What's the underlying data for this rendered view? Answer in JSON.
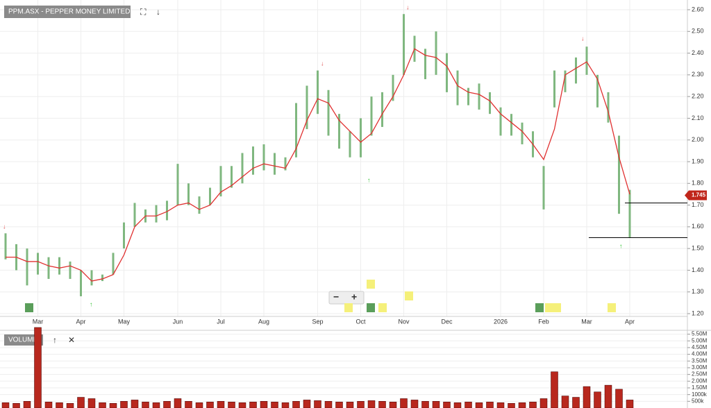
{
  "chart_data": [
    {
      "type": "ohlc",
      "title": "PPM.ASX - PEPPER MONEY LIMITED",
      "categories": [
        null,
        null,
        null,
        "Mar",
        null,
        null,
        null,
        "Apr",
        null,
        null,
        null,
        "May",
        null,
        null,
        null,
        null,
        "Jun",
        null,
        null,
        null,
        "Jul",
        null,
        null,
        null,
        "Aug",
        null,
        null,
        null,
        null,
        "Sep",
        null,
        null,
        null,
        "Oct",
        null,
        null,
        null,
        "Nov",
        null,
        null,
        null,
        "Dec",
        null,
        null,
        null,
        null,
        "2026",
        null,
        null,
        null,
        "Feb",
        null,
        null,
        null,
        "Mar",
        null,
        null,
        null,
        "Apr"
      ],
      "low": [
        1.45,
        1.4,
        1.33,
        1.38,
        1.36,
        1.38,
        1.36,
        1.28,
        1.33,
        1.35,
        1.38,
        1.5,
        1.6,
        1.62,
        1.62,
        1.63,
        1.7,
        1.7,
        1.66,
        1.7,
        1.74,
        1.78,
        1.8,
        1.84,
        1.86,
        1.84,
        1.86,
        1.92,
        2.05,
        2.12,
        2.02,
        1.96,
        1.92,
        1.92,
        2.02,
        2.06,
        2.18,
        2.3,
        2.36,
        2.28,
        2.3,
        2.22,
        2.16,
        2.16,
        2.14,
        2.12,
        2.02,
        2.02,
        1.98,
        1.92,
        1.68,
        2.15,
        2.22,
        2.26,
        2.3,
        2.15,
        2.08,
        1.66,
        1.55
      ],
      "high": [
        1.57,
        1.52,
        1.5,
        1.48,
        1.46,
        1.46,
        1.44,
        1.4,
        1.4,
        1.38,
        1.48,
        1.62,
        1.71,
        1.68,
        1.7,
        1.72,
        1.89,
        1.8,
        1.74,
        1.78,
        1.88,
        1.88,
        1.94,
        1.97,
        1.98,
        1.94,
        1.92,
        2.17,
        2.25,
        2.32,
        2.23,
        2.12,
        2.04,
        2.1,
        2.2,
        2.22,
        2.3,
        2.58,
        2.48,
        2.42,
        2.5,
        2.4,
        2.32,
        2.24,
        2.26,
        2.22,
        2.15,
        2.12,
        2.08,
        2.04,
        1.88,
        2.32,
        2.32,
        2.38,
        2.43,
        2.3,
        2.22,
        2.02,
        1.77
      ],
      "ma": [
        1.46,
        1.46,
        1.44,
        1.44,
        1.42,
        1.41,
        1.42,
        1.4,
        1.35,
        1.36,
        1.38,
        1.47,
        1.6,
        1.65,
        1.65,
        1.67,
        1.7,
        1.71,
        1.68,
        1.7,
        1.76,
        1.79,
        1.83,
        1.87,
        1.89,
        1.88,
        1.87,
        1.96,
        2.09,
        2.19,
        2.17,
        2.09,
        2.04,
        1.99,
        2.03,
        2.12,
        2.2,
        2.3,
        2.42,
        2.39,
        2.38,
        2.34,
        2.25,
        2.22,
        2.21,
        2.18,
        2.12,
        2.08,
        2.04,
        1.98,
        1.91,
        2.05,
        2.3,
        2.33,
        2.36,
        2.28,
        2.13,
        1.92,
        1.75
      ],
      "color": "#7fb77f",
      "ma_color": "#e03030",
      "last_value": 1.745,
      "levels": [
        1.71,
        1.55
      ],
      "ylim": [
        1.2,
        2.6
      ],
      "yticks": [
        {
          "value": 1.2,
          "label": "1.20"
        },
        {
          "value": 1.3,
          "label": "1.30"
        },
        {
          "value": 1.4,
          "label": "1.40"
        },
        {
          "value": 1.5,
          "label": "1.50"
        },
        {
          "value": 1.6,
          "label": "1.60"
        },
        {
          "value": 1.7,
          "label": "1.70"
        },
        {
          "value": 1.8,
          "label": "1.80"
        },
        {
          "value": 1.9,
          "label": "1.90"
        },
        {
          "value": 2.0,
          "label": "2.00"
        },
        {
          "value": 2.1,
          "label": "2.10"
        },
        {
          "value": 2.2,
          "label": "2.20"
        },
        {
          "value": 2.3,
          "label": "2.30"
        },
        {
          "value": 2.4,
          "label": "2.40"
        },
        {
          "value": 2.5,
          "label": "2.50"
        },
        {
          "value": 2.6,
          "label": "2.60"
        }
      ],
      "grid": true
    },
    {
      "type": "bar",
      "title": "VOLUME",
      "values": [
        400000,
        350000,
        500000,
        6000000,
        450000,
        400000,
        350000,
        800000,
        700000,
        400000,
        350000,
        500000,
        600000,
        450000,
        400000,
        500000,
        700000,
        500000,
        400000,
        450000,
        500000,
        450000,
        400000,
        450000,
        500000,
        450000,
        400000,
        500000,
        600000,
        550000,
        500000,
        450000,
        450000,
        500000,
        550000,
        500000,
        450000,
        700000,
        600000,
        500000,
        500000,
        450000,
        400000,
        450000,
        400000,
        450000,
        400000,
        350000,
        400000,
        450000,
        700000,
        2700000,
        900000,
        800000,
        1600000,
        1200000,
        1700000,
        1400000,
        600000
      ],
      "color": "#b8281e",
      "ylim": [
        0,
        6100000
      ],
      "yticks": [
        {
          "value": 500000,
          "label": "500k"
        },
        {
          "value": 1000000,
          "label": "1000k"
        },
        {
          "value": 1500000,
          "label": "1.50M"
        },
        {
          "value": 2000000,
          "label": "2.00M"
        },
        {
          "value": 2500000,
          "label": "2.50M"
        },
        {
          "value": 3000000,
          "label": "3.00M"
        },
        {
          "value": 3500000,
          "label": "3.50M"
        },
        {
          "value": 4000000,
          "label": "4.00M"
        },
        {
          "value": 4500000,
          "label": "4.50M"
        },
        {
          "value": 5000000,
          "label": "5.00M"
        },
        {
          "value": 5500000,
          "label": "5.50M"
        }
      ],
      "grid": true
    }
  ]
}
